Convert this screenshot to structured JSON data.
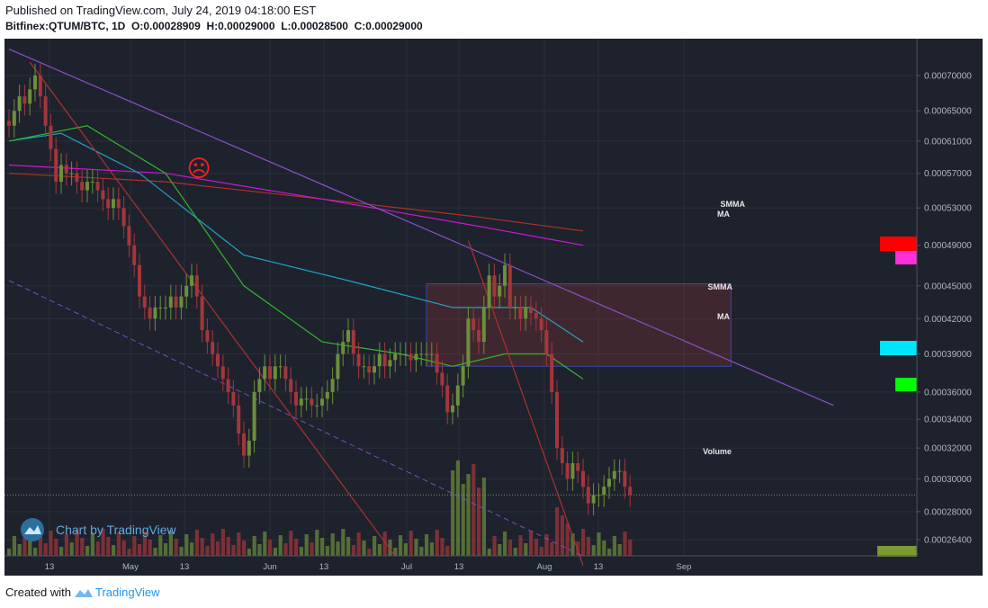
{
  "header": {
    "published": "Published on TradingView.com, July 24, 2019 04:18:00 EST",
    "symbol": "Bitfinex:QTUM/BTC, 1D",
    "o_label": "O:",
    "o_value": "0.00028909",
    "h_label": "H:",
    "h_value": "0.00029000",
    "l_label": "L:",
    "l_value": "0.00028500",
    "c_label": "C:",
    "c_value": "0.00029000"
  },
  "footer": {
    "created_with": "Created with",
    "brand": "TradingView"
  },
  "watermark": {
    "text": "Chart by TradingView"
  },
  "emoji": "☹",
  "labels": {
    "smma_1": "SMMA",
    "ma_1": "MA",
    "smma_2": "SMMA",
    "ma_2": "MA",
    "volume": "Volume"
  },
  "colors": {
    "background": "#1e222d",
    "up": "#6b8f3a",
    "down": "#a4363b",
    "smma_red": "#b0302c",
    "ma_purple": "#c71ad0",
    "ma_cyan": "#20a4c4",
    "ma_green": "#2fb82b",
    "trend_violet": "#8a4fc8",
    "marker_red": "#ff0000",
    "marker_magenta": "#ff2fd9",
    "marker_cyan": "#00e5ff",
    "marker_green": "#00ff00",
    "marker_olive": "#7b9a2f"
  },
  "chart_data": {
    "type": "candlestick",
    "symbol": "QTUM/BTC",
    "exchange": "Bitfinex",
    "interval": "1D",
    "last_close": 0.00029,
    "x_ticks": [
      "13",
      "May",
      "13",
      "Jun",
      "13",
      "Jul",
      "13",
      "Aug",
      "13",
      "Sep"
    ],
    "y_ticks": [
      0.0007,
      0.00065,
      0.00061,
      0.00057,
      0.00053,
      0.00049,
      0.00045,
      0.00042,
      0.00039,
      0.00036,
      0.00034,
      0.00032,
      0.0003,
      0.00028,
      0.000264
    ],
    "y_tick_labels": [
      "0.00070000",
      "0.00065000",
      "0.00061000",
      "0.00057000",
      "0.00053000",
      "0.00049000",
      "0.00045000",
      "0.00042000",
      "0.00039000",
      "0.00036000",
      "0.00034000",
      "0.00032000",
      "0.00030000",
      "0.00028000",
      "0.00026400"
    ],
    "y_scale": "log",
    "grid": true,
    "closes": [
      0.00063,
      0.00065,
      0.00067,
      0.00066,
      0.00068,
      0.0007,
      0.00067,
      0.00063,
      0.0006,
      0.00056,
      0.00058,
      0.00057,
      0.00057,
      0.00056,
      0.00055,
      0.00056,
      0.00056,
      0.00055,
      0.00054,
      0.00053,
      0.00054,
      0.00053,
      0.00051,
      0.00049,
      0.00047,
      0.00044,
      0.00043,
      0.00042,
      0.00043,
      0.00043,
      0.00043,
      0.00044,
      0.00043,
      0.00044,
      0.00045,
      0.00046,
      0.00044,
      0.00041,
      0.0004,
      0.00039,
      0.00038,
      0.00037,
      0.00036,
      0.00035,
      0.00033,
      0.000315,
      0.000325,
      0.00036,
      0.00037,
      0.00038,
      0.00037,
      0.00038,
      0.00038,
      0.00037,
      0.00036,
      0.00035,
      0.000355,
      0.000355,
      0.00035,
      0.00035,
      0.000355,
      0.00036,
      0.00037,
      0.00039,
      0.0004,
      0.00041,
      0.00039,
      0.00038,
      0.00038,
      0.000375,
      0.00038,
      0.00039,
      0.00038,
      0.000385,
      0.00039,
      0.00039,
      0.00039,
      0.000385,
      0.00039,
      0.00039,
      0.00039,
      0.00039,
      0.000375,
      0.000365,
      0.000345,
      0.00035,
      0.000365,
      0.00038,
      0.00042,
      0.00041,
      0.0004,
      0.00043,
      0.00046,
      0.00044,
      0.00045,
      0.00047,
      0.00043,
      0.00043,
      0.00042,
      0.00043,
      0.000425,
      0.00042,
      0.00041,
      0.00039,
      0.00036,
      0.00032,
      0.00031,
      0.0003,
      0.00031,
      0.000305,
      0.000295,
      0.000285,
      0.00029,
      0.00029,
      0.000295,
      0.0003,
      0.000305,
      0.000305,
      0.000295,
      0.00029
    ],
    "series": [
      {
        "name": "SMMA",
        "color": "#b0302c",
        "points": [
          [
            0,
            0.00057
          ],
          [
            30,
            0.00056
          ],
          [
            60,
            0.00054
          ],
          [
            90,
            0.00052
          ],
          [
            110,
            0.000505
          ]
        ]
      },
      {
        "name": "MA",
        "color": "#c71ad0",
        "points": [
          [
            0,
            0.00058
          ],
          [
            30,
            0.00057
          ],
          [
            60,
            0.00054
          ],
          [
            90,
            0.00051
          ],
          [
            110,
            0.00049
          ]
        ]
      },
      {
        "name": "SMMA",
        "color": "#20a4c4",
        "points": [
          [
            0,
            0.00061
          ],
          [
            10,
            0.00062
          ],
          [
            25,
            0.00057
          ],
          [
            45,
            0.00048
          ],
          [
            65,
            0.000455
          ],
          [
            85,
            0.00043
          ],
          [
            100,
            0.00043
          ],
          [
            110,
            0.0004
          ]
        ]
      },
      {
        "name": "MA",
        "color": "#2fb82b",
        "points": [
          [
            0,
            0.00061
          ],
          [
            15,
            0.00063
          ],
          [
            30,
            0.00057
          ],
          [
            45,
            0.00045
          ],
          [
            60,
            0.0004
          ],
          [
            75,
            0.00039
          ],
          [
            85,
            0.00038
          ],
          [
            95,
            0.00039
          ],
          [
            103,
            0.00039
          ],
          [
            110,
            0.00037
          ]
        ]
      }
    ],
    "annotations": {
      "rect": {
        "x0": 80,
        "x1": 128,
        "y0": 0.00038,
        "y1": 0.000452
      },
      "trend_lines": [
        {
          "name": "upper-violet",
          "from": [
            0,
            0.00074
          ],
          "to": [
            158,
            0.00035
          ]
        },
        {
          "name": "red-1",
          "from": [
            4,
            0.00072
          ],
          "to": [
            74,
            0.000255
          ]
        },
        {
          "name": "red-2",
          "from": [
            88,
            0.000495
          ],
          "to": [
            110,
            0.00025
          ]
        },
        {
          "name": "dashed",
          "from": [
            0,
            0.000455
          ],
          "to": [
            110,
            0.000255
          ]
        }
      ]
    }
  }
}
